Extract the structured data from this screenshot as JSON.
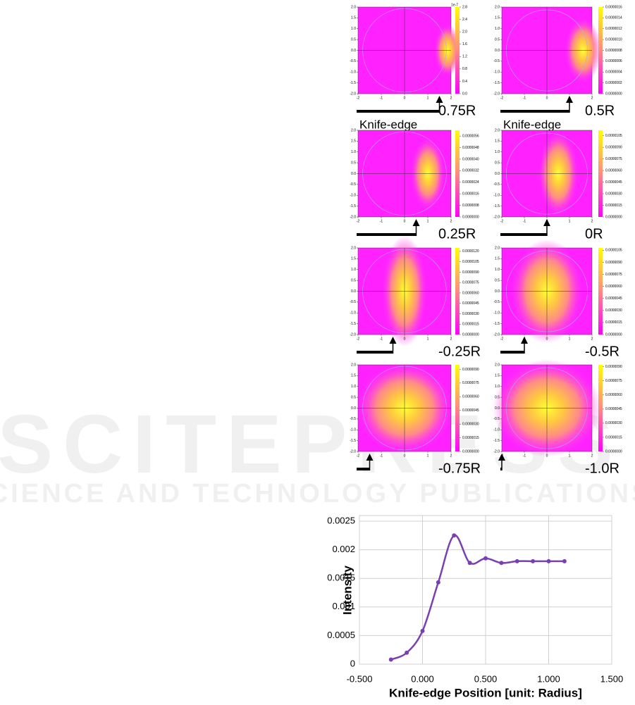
{
  "watermark": {
    "title": "SCITEPRESS",
    "subtitle": "SCIENCE AND TECHNOLOGY PUBLICATIONS"
  },
  "panels": {
    "xlim": [
      -2,
      2
    ],
    "ylim": [
      -2,
      2
    ],
    "xticks": [
      -2,
      -1,
      0,
      1,
      2
    ],
    "yticks": [
      {
        "value": 2,
        "label": "2.0"
      },
      {
        "value": 1.5,
        "label": "1.5"
      },
      {
        "value": 1,
        "label": "1.0"
      },
      {
        "value": 0.5,
        "label": "0.5"
      },
      {
        "value": 0,
        "label": "0.0"
      },
      {
        "value": -0.5,
        "label": "-0.5"
      },
      {
        "value": -1,
        "label": "-1.0"
      },
      {
        "value": -1.5,
        "label": "-1.5"
      },
      {
        "value": -2,
        "label": "-2.0"
      }
    ],
    "items": [
      {
        "label": "0.75R",
        "knife_position": 0.75,
        "knife_label": "Knife-edge",
        "colorbar_offset": "1e-7",
        "colorbar_lim": [
          0,
          2.8
        ],
        "colorbar_ticks": [
          {
            "value": 0,
            "label": "0.0"
          },
          {
            "value": 0.4,
            "label": "0.4"
          },
          {
            "value": 0.8,
            "label": "0.8"
          },
          {
            "value": 1.2,
            "label": "1.2"
          },
          {
            "value": 1.6,
            "label": "1.6"
          },
          {
            "value": 2,
            "label": "2.0"
          },
          {
            "value": 2.4,
            "label": "2.4"
          },
          {
            "value": 2.8,
            "label": "2.8"
          }
        ]
      },
      {
        "label": "0.5R",
        "knife_position": 0.5,
        "knife_label": "Knife-edge",
        "colorbar_lim": [
          0,
          1.6e-06
        ],
        "colorbar_ticks": [
          {
            "value": 0,
            "label": "0.0000000"
          },
          {
            "value": 2e-07,
            "label": "0.0000002"
          },
          {
            "value": 4e-07,
            "label": "0.0000004"
          },
          {
            "value": 6e-07,
            "label": "0.0000006"
          },
          {
            "value": 8e-07,
            "label": "0.0000008"
          },
          {
            "value": 1e-06,
            "label": "0.0000010"
          },
          {
            "value": 1.2e-06,
            "label": "0.0000012"
          },
          {
            "value": 1.4e-06,
            "label": "0.0000014"
          },
          {
            "value": 1.6e-06,
            "label": "0.0000016"
          }
        ]
      },
      {
        "label": "0.25R",
        "knife_position": 0.25,
        "colorbar_lim": [
          0,
          6e-06
        ],
        "colorbar_ticks": [
          {
            "value": 0,
            "label": "0.0000000"
          },
          {
            "value": 8e-07,
            "label": "0.0000008"
          },
          {
            "value": 1.6e-06,
            "label": "0.0000016"
          },
          {
            "value": 2.4e-06,
            "label": "0.0000024"
          },
          {
            "value": 3.2e-06,
            "label": "0.0000032"
          },
          {
            "value": 4e-06,
            "label": "0.0000040"
          },
          {
            "value": 4.8e-06,
            "label": "0.0000048"
          },
          {
            "value": 5.6e-06,
            "label": "0.0000056"
          }
        ]
      },
      {
        "label": "0R",
        "knife_position": 0,
        "colorbar_lim": [
          0,
          1.12e-05
        ],
        "colorbar_ticks": [
          {
            "value": 0,
            "label": "0.0000000"
          },
          {
            "value": 1.5e-06,
            "label": "0.0000015"
          },
          {
            "value": 3e-06,
            "label": "0.0000030"
          },
          {
            "value": 4.5e-06,
            "label": "0.0000045"
          },
          {
            "value": 6e-06,
            "label": "0.0000060"
          },
          {
            "value": 7.5e-06,
            "label": "0.0000075"
          },
          {
            "value": 9e-06,
            "label": "0.0000090"
          },
          {
            "value": 1.05e-05,
            "label": "0.0000105"
          }
        ]
      },
      {
        "label": "-0.25R",
        "knife_position": -0.25,
        "colorbar_lim": [
          0,
          1.25e-05
        ],
        "colorbar_ticks": [
          {
            "value": 0,
            "label": "0.0000000"
          },
          {
            "value": 1.5e-06,
            "label": "0.0000015"
          },
          {
            "value": 3e-06,
            "label": "0.0000030"
          },
          {
            "value": 4.5e-06,
            "label": "0.0000045"
          },
          {
            "value": 6e-06,
            "label": "0.0000060"
          },
          {
            "value": 7.5e-06,
            "label": "0.0000075"
          },
          {
            "value": 9e-06,
            "label": "0.0000090"
          },
          {
            "value": 1.05e-05,
            "label": "0.0000105"
          },
          {
            "value": 1.2e-05,
            "label": "0.0000120"
          }
        ]
      },
      {
        "label": "-0.5R",
        "knife_position": -0.5,
        "colorbar_lim": [
          0,
          1.08e-05
        ],
        "colorbar_ticks": [
          {
            "value": 0,
            "label": "0.0000000"
          },
          {
            "value": 1.5e-06,
            "label": "0.0000015"
          },
          {
            "value": 3e-06,
            "label": "0.0000030"
          },
          {
            "value": 4.5e-06,
            "label": "0.0000045"
          },
          {
            "value": 6e-06,
            "label": "0.0000060"
          },
          {
            "value": 7.5e-06,
            "label": "0.0000075"
          },
          {
            "value": 9e-06,
            "label": "0.0000090"
          },
          {
            "value": 1.05e-05,
            "label": "0.0000105"
          }
        ]
      },
      {
        "label": "-0.75R",
        "knife_position": -0.75,
        "colorbar_lim": [
          0,
          9.5e-06
        ],
        "colorbar_ticks": [
          {
            "value": 0,
            "label": "0.0000000"
          },
          {
            "value": 1.5e-06,
            "label": "0.0000015"
          },
          {
            "value": 3e-06,
            "label": "0.0000030"
          },
          {
            "value": 4.5e-06,
            "label": "0.0000045"
          },
          {
            "value": 6e-06,
            "label": "0.0000060"
          },
          {
            "value": 7.5e-06,
            "label": "0.0000075"
          },
          {
            "value": 9e-06,
            "label": "0.0000090"
          }
        ]
      },
      {
        "label": "-1.0R",
        "knife_position": -1,
        "colorbar_lim": [
          0,
          9.2e-06
        ],
        "colorbar_ticks": [
          {
            "value": 0,
            "label": "0.0000000"
          },
          {
            "value": 1.5e-06,
            "label": "0.0000015"
          },
          {
            "value": 3e-06,
            "label": "0.0000030"
          },
          {
            "value": 4.5e-06,
            "label": "0.0000045"
          },
          {
            "value": 6e-06,
            "label": "0.0000060"
          },
          {
            "value": 7.5e-06,
            "label": "0.0000075"
          },
          {
            "value": 9e-06,
            "label": "0.0000090"
          }
        ]
      }
    ]
  },
  "chart_data": {
    "type": "line",
    "x_label": "Knife-edge Position [unit: Radius]",
    "y_label": "Intensity",
    "x": [
      -0.25,
      -0.125,
      0,
      0.125,
      0.25,
      0.375,
      0.5,
      0.625,
      0.75,
      0.875,
      1.0,
      1.125
    ],
    "series": [
      {
        "color": "#7a3fb0",
        "values": [
          8e-05,
          0.0002,
          0.00058,
          0.00143,
          0.00225,
          0.00177,
          0.00185,
          0.00177,
          0.0018,
          0.0018,
          0.0018,
          0.0018
        ]
      }
    ],
    "xlim": [
      -0.5,
      1.5
    ],
    "ylim": [
      0,
      0.0025
    ],
    "xticks": [
      {
        "value": -0.5,
        "label": "-0.500"
      },
      {
        "value": 0,
        "label": "0.000"
      },
      {
        "value": 0.5,
        "label": "0.500"
      },
      {
        "value": 1,
        "label": "1.000"
      },
      {
        "value": 1.5,
        "label": "1.500"
      }
    ],
    "yticks": [
      0,
      0.0005,
      0.001,
      0.0015,
      0.002,
      0.0025
    ],
    "grid": true
  }
}
